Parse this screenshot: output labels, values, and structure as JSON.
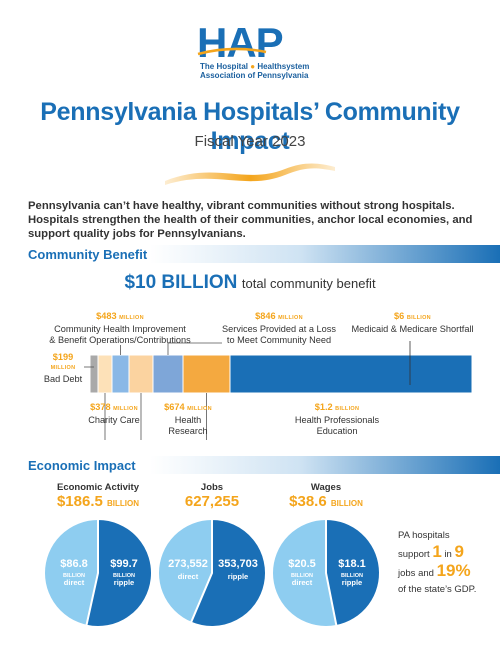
{
  "logo": {
    "mark": "HAP",
    "line1_a": "The Hospital",
    "line1_b": "Healthsystem",
    "line2": "Association of Pennsylvania"
  },
  "title": "Pennsylvania Hospitals’ Community Impact",
  "subtitle": "Fiscal Year 2023",
  "intro": "Pennsylvania can’t have healthy, vibrant communities without strong hospitals. Hospitals strengthen the health of their communities, anchor local economies, and support quality jobs for Pennsylvanians.",
  "sections": {
    "community": "Community Benefit",
    "economic": "Economic Impact"
  },
  "colors": {
    "brand_blue": "#1a6fb6",
    "accent_orange": "#f4a51c",
    "light_blue": "#8ecdf0",
    "dark_blue": "#1a6fb6"
  },
  "total_benefit": {
    "value": "$10 BILLION",
    "label": "total community benefit"
  },
  "chart_data": [
    {
      "type": "bar",
      "title": "Community Benefit",
      "unit": "billions",
      "categories": [
        "Bad Debt",
        "Charity Care",
        "Community Health Improvement & Benefit Operations/Contributions",
        "Health Research",
        "Services Provided at a Loss to Meet Community Need",
        "Health Professionals Education",
        "Medicaid & Medicare Shortfall"
      ],
      "values": [
        0.199,
        0.378,
        0.483,
        0.674,
        0.846,
        1.2,
        6
      ],
      "segment_colors": [
        "#a9a9a9",
        "#fde1b8",
        "#8ab8e6",
        "#fbd3a0",
        "#7ea6d8",
        "#f4a940",
        "#1a6fb6"
      ],
      "labels": {
        "bad_debt_val": "$199",
        "bad_debt_unit": "MILLION",
        "bad_debt": "Bad Debt",
        "charity_val": "$378",
        "charity_unit": "MILLION",
        "charity": "Charity Care",
        "chi_val": "$483",
        "chi_unit": "MILLION",
        "chi_1": "Community Health Improvement",
        "chi_2": "& Benefit Operations/Contributions",
        "research_val": "$674",
        "research_unit": "MILLION",
        "research_1": "Health",
        "research_2": "Research",
        "loss_val": "$846",
        "loss_unit": "MILLION",
        "loss_1": "Services Provided at a Loss",
        "loss_2": "to Meet Community Need",
        "edu_val": "$1.2",
        "edu_unit": "BILLION",
        "edu_1": "Health Professionals",
        "edu_2": "Education",
        "med_val": "$6",
        "med_unit": "BILLION",
        "med": "Medicaid & Medicare Shortfall"
      }
    },
    {
      "type": "pie",
      "title": "Economic Activity",
      "total": "$186.5",
      "total_unit": "BILLION",
      "slices": [
        {
          "name": "direct",
          "value": 86.8,
          "amount": "$86.8",
          "unit": "BILLION",
          "label": "direct"
        },
        {
          "name": "ripple",
          "value": 99.7,
          "amount": "$99.7",
          "unit": "BILLION",
          "label": "ripple"
        }
      ]
    },
    {
      "type": "pie",
      "title": "Jobs",
      "total": "627,255",
      "total_unit": "",
      "slices": [
        {
          "name": "direct",
          "value": 273552,
          "amount": "273,552",
          "unit": "",
          "label": "direct"
        },
        {
          "name": "ripple",
          "value": 353703,
          "amount": "353,703",
          "unit": "",
          "label": "ripple"
        }
      ]
    },
    {
      "type": "pie",
      "title": "Wages",
      "total": "$38.6",
      "total_unit": "BILLION",
      "slices": [
        {
          "name": "direct",
          "value": 20.5,
          "amount": "$20.5",
          "unit": "BILLION",
          "label": "direct"
        },
        {
          "name": "ripple",
          "value": 18.1,
          "amount": "$18.1",
          "unit": "BILLION",
          "label": "ripple"
        }
      ]
    }
  ],
  "side_note": {
    "l1": "PA hospitals",
    "l2a": "support",
    "one": "1",
    "in": "in",
    "nine": "9",
    "l3a": "jobs and",
    "pct": "19%",
    "l4": "of the state’s GDP."
  }
}
